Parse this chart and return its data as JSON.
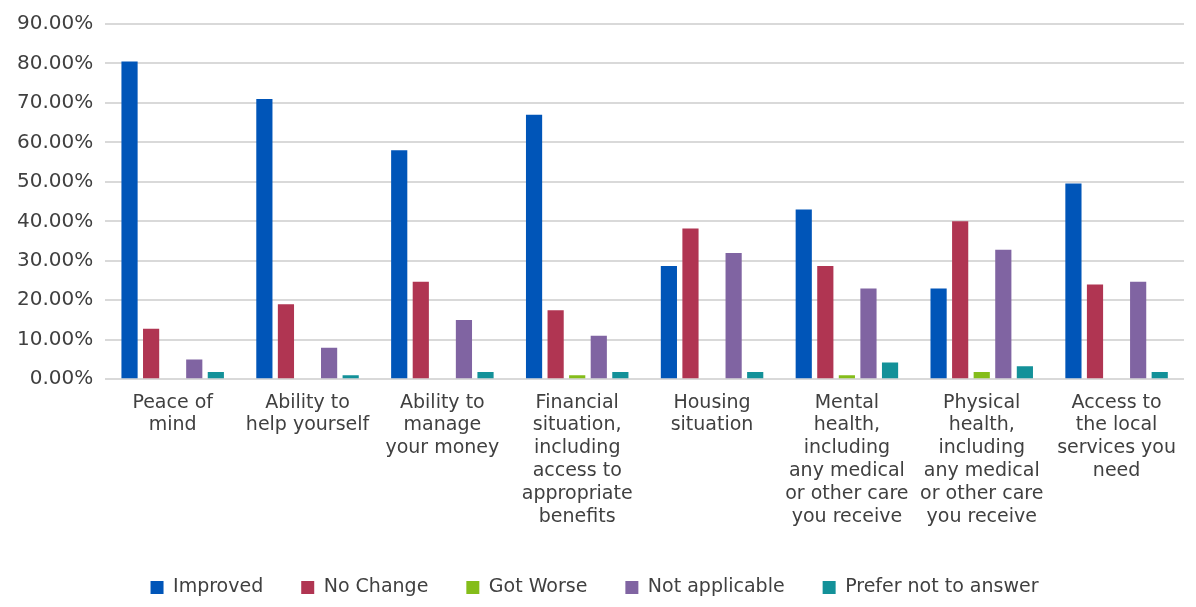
{
  "chart_data": {
    "type": "bar",
    "categories": [
      "Peace of mind",
      "Ability to help yourself",
      "Ability to manage your money",
      "Financial situation, including access to appropriate benefits",
      "Housing situation",
      "Mental health, including any medical or other care you receive",
      "Physical health, including any medical or other care you receive",
      "Access to the local services you need"
    ],
    "series": [
      {
        "name": "Improved",
        "color": "#0055b8",
        "values": [
          80.5,
          71,
          58,
          67,
          28.7,
          43,
          23,
          49.6
        ]
      },
      {
        "name": "No Change",
        "color": "#b03552",
        "values": [
          12.8,
          19,
          24.7,
          17.5,
          38.2,
          28.7,
          40,
          24
        ]
      },
      {
        "name": "Got Worse",
        "color": "#84bd1a",
        "values": [
          0,
          0,
          0,
          1,
          0,
          1,
          1.8,
          0
        ]
      },
      {
        "name": "Not applicable",
        "color": "#8064a2",
        "values": [
          5,
          8,
          15,
          11,
          32,
          23,
          32.8,
          24.7
        ]
      },
      {
        "name": "Prefer not to answer",
        "color": "#139199",
        "values": [
          1.8,
          1,
          1.8,
          1.8,
          1.8,
          4.2,
          3.3,
          1.8
        ]
      }
    ],
    "ylim": [
      0,
      90
    ],
    "yticks": [
      {
        "value": 0,
        "label": "0.00%"
      },
      {
        "value": 10,
        "label": "10.00%"
      },
      {
        "value": 20,
        "label": "20.00%"
      },
      {
        "value": 30,
        "label": "30.00%"
      },
      {
        "value": 40,
        "label": "40.00%"
      },
      {
        "value": 50,
        "label": "50.00%"
      },
      {
        "value": 60,
        "label": "60.00%"
      },
      {
        "value": 70,
        "label": "70.00%"
      },
      {
        "value": 80,
        "label": "80.00%"
      },
      {
        "value": 90,
        "label": "90.00%"
      }
    ],
    "grid": "y",
    "legend": "bottom"
  }
}
